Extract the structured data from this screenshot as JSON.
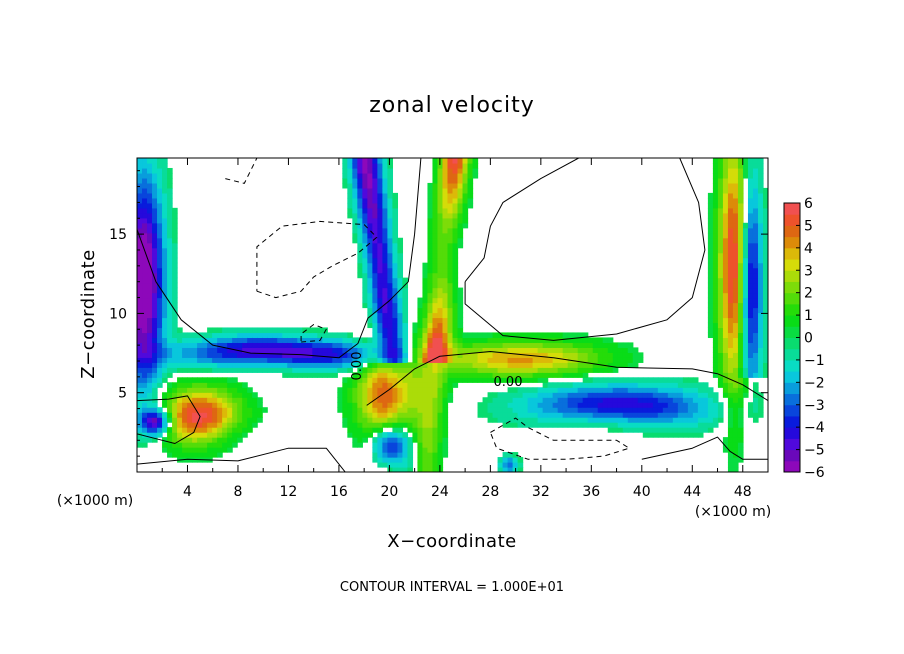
{
  "chart_data": {
    "type": "heatmap",
    "title": "zonal velocity",
    "xlabel": "X−coordinate",
    "ylabel": "Z−coordinate",
    "x_unit_left": "(×1000 m)",
    "x_unit_right": "(×1000 m)",
    "xlim": [
      0,
      50
    ],
    "ylim": [
      0,
      19.8
    ],
    "x_ticks": [
      4,
      8,
      12,
      16,
      20,
      24,
      28,
      32,
      36,
      40,
      44,
      48
    ],
    "x_tick_labels": [
      "4",
      "8",
      "12",
      "16",
      "20",
      "24",
      "28",
      "32",
      "36",
      "40",
      "44",
      "48"
    ],
    "y_ticks": [
      5,
      10,
      15
    ],
    "y_tick_labels": [
      "5",
      "10",
      "15"
    ],
    "colorbar": {
      "min": -6,
      "max": 6,
      "ticks": [
        6,
        5,
        4,
        3,
        2,
        1,
        0,
        -1,
        -2,
        -3,
        -4,
        -5,
        -6
      ],
      "tick_labels": [
        "6",
        "5",
        "4",
        "3",
        "2",
        "1",
        "0",
        "−1",
        "−2",
        "−3",
        "−4",
        "−5",
        "−6"
      ]
    },
    "contour_labels": [
      "0.00",
      "0.00"
    ],
    "footnote": "CONTOUR INTERVAL = 1.000E+01",
    "grid": false
  }
}
